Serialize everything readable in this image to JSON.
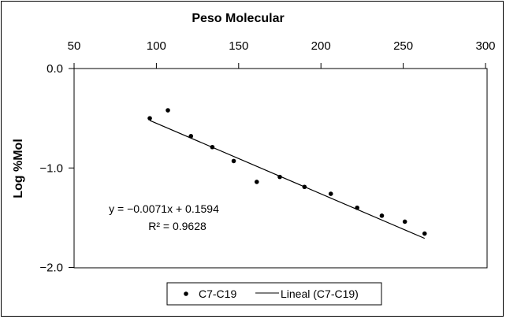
{
  "chart_data": {
    "type": "scatter",
    "xlabel": "Peso Molecular",
    "ylabel": "Log %Mol",
    "xlim": [
      50,
      300
    ],
    "ylim": [
      -2.0,
      0.0
    ],
    "x_ticks": [
      50,
      100,
      150,
      200,
      250,
      300
    ],
    "x_tick_labels": [
      "50",
      "100",
      "150",
      "200",
      "250",
      "300"
    ],
    "y_ticks": [
      0.0,
      -1.0,
      -2.0
    ],
    "y_tick_labels": [
      "0.0",
      "−1.0",
      "−2.0"
    ],
    "x_axis_position": "top",
    "grid": false,
    "legend_position": "bottom-center",
    "series": [
      {
        "name": "C7-C19",
        "kind": "points",
        "color": "#000000",
        "points": [
          {
            "x": 96,
            "y": -0.5
          },
          {
            "x": 107,
            "y": -0.42
          },
          {
            "x": 121,
            "y": -0.68
          },
          {
            "x": 134,
            "y": -0.79
          },
          {
            "x": 147,
            "y": -0.93
          },
          {
            "x": 161,
            "y": -1.14
          },
          {
            "x": 175,
            "y": -1.09
          },
          {
            "x": 190,
            "y": -1.19
          },
          {
            "x": 206,
            "y": -1.26
          },
          {
            "x": 222,
            "y": -1.4
          },
          {
            "x": 237,
            "y": -1.48
          },
          {
            "x": 251,
            "y": -1.54
          },
          {
            "x": 263,
            "y": -1.66
          }
        ]
      },
      {
        "name": "Lineal (C7-C19)",
        "kind": "trendline",
        "color": "#000000",
        "slope": -0.0071,
        "intercept": 0.1594,
        "x_range": [
          96,
          263
        ]
      }
    ],
    "annotations": {
      "equation": "y = −0.0071x + 0.1594",
      "r_squared": "R² = 0.9628"
    },
    "legend": {
      "points_label": "C7-C19",
      "line_label": "Lineal (C7-C19)"
    }
  }
}
